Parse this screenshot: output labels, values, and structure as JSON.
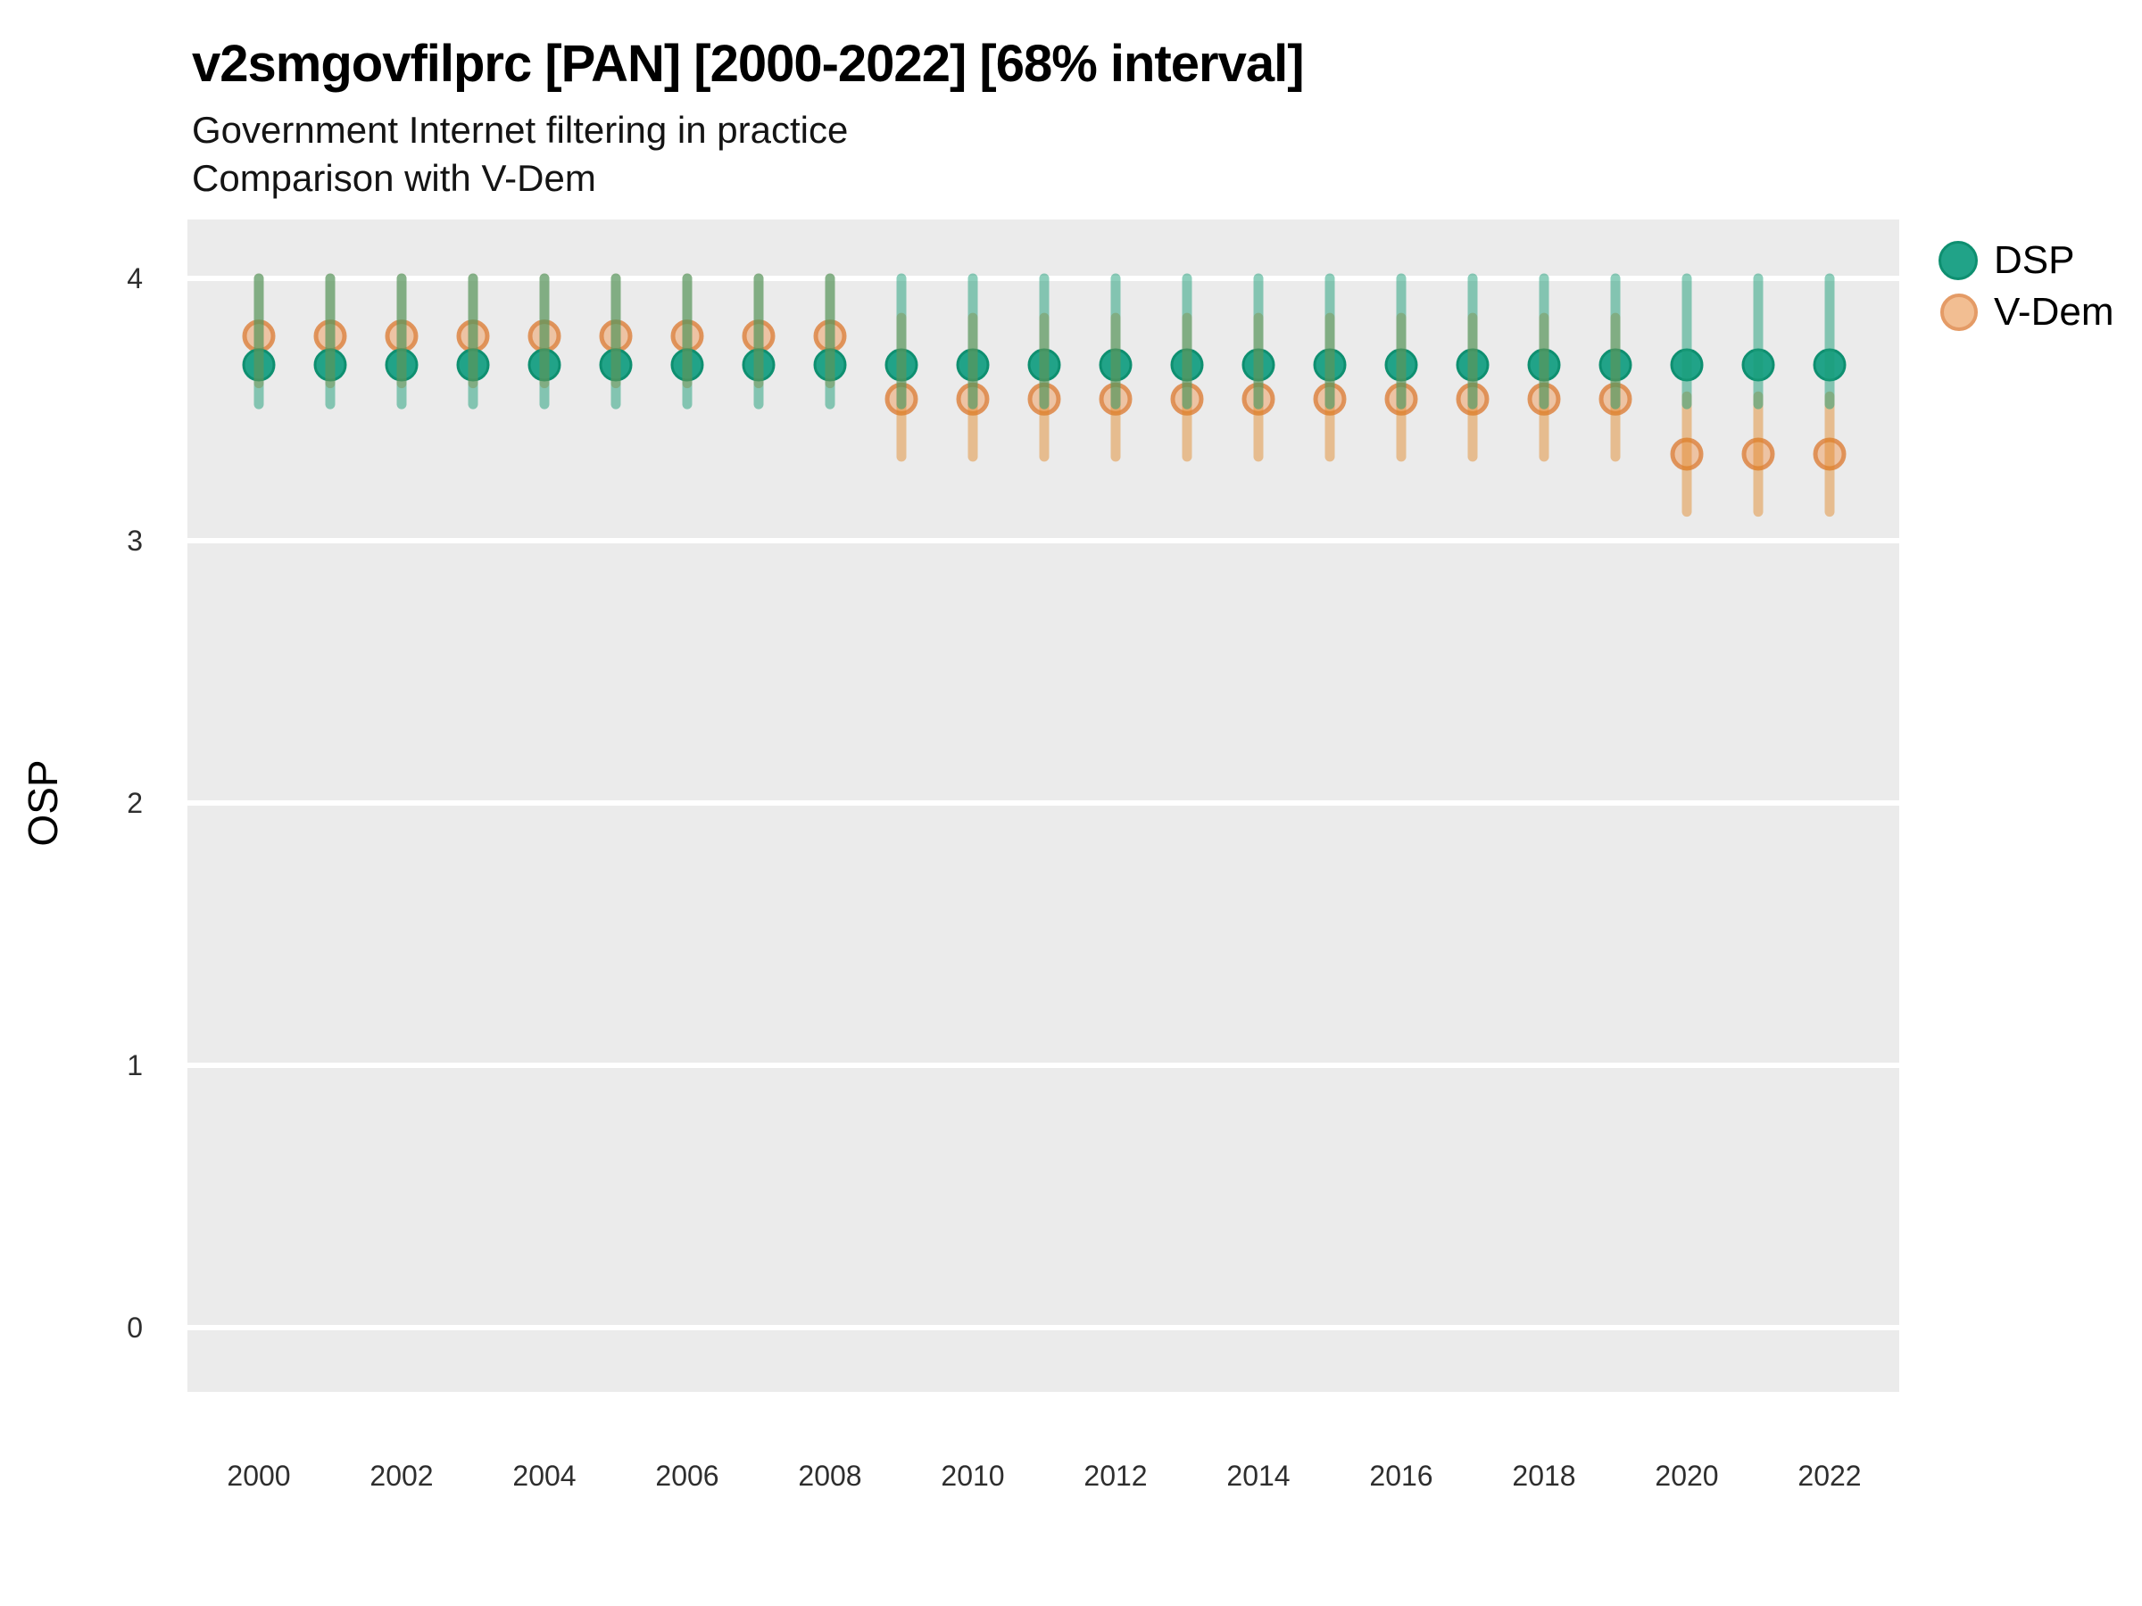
{
  "chart_data": {
    "type": "scatter",
    "title": "v2smgovfilprc [PAN] [2000-2022] [68% interval]",
    "subtitle1": "Government Internet filtering in practice",
    "subtitle2": "Comparison with V-Dem",
    "ylabel": "OSP",
    "xlabel": "",
    "x": [
      2000,
      2001,
      2002,
      2003,
      2004,
      2005,
      2006,
      2007,
      2008,
      2009,
      2010,
      2011,
      2012,
      2013,
      2014,
      2015,
      2016,
      2017,
      2018,
      2019,
      2020,
      2021,
      2022
    ],
    "xticks": [
      2000,
      2002,
      2004,
      2006,
      2008,
      2010,
      2012,
      2014,
      2016,
      2018,
      2020,
      2022
    ],
    "yticks": [
      4,
      3,
      2,
      1,
      0
    ],
    "ylim": [
      -0.22,
      4.22
    ],
    "interval_label": "68% interval",
    "legend_position": "right",
    "panel_bg": "#EBEBEB",
    "gridline_color": "#FFFFFF",
    "series": [
      {
        "name": "DSP",
        "point_fill": "#21A388",
        "point_stroke": "#0E8F70",
        "bar_color": "#1B9E77",
        "values": [
          3.67,
          3.67,
          3.67,
          3.67,
          3.67,
          3.67,
          3.67,
          3.67,
          3.67,
          3.67,
          3.67,
          3.67,
          3.67,
          3.67,
          3.67,
          3.67,
          3.67,
          3.67,
          3.67,
          3.67,
          3.67,
          3.67,
          3.67
        ],
        "lower": [
          3.52,
          3.52,
          3.52,
          3.52,
          3.52,
          3.52,
          3.52,
          3.52,
          3.52,
          3.52,
          3.52,
          3.52,
          3.52,
          3.52,
          3.52,
          3.52,
          3.52,
          3.52,
          3.52,
          3.52,
          3.52,
          3.52,
          3.52
        ],
        "upper": [
          4.0,
          4.0,
          4.0,
          4.0,
          4.0,
          4.0,
          4.0,
          4.0,
          4.0,
          4.0,
          4.0,
          4.0,
          4.0,
          4.0,
          4.0,
          4.0,
          4.0,
          4.0,
          4.0,
          4.0,
          4.0,
          4.0,
          4.0
        ]
      },
      {
        "name": "V-Dem",
        "point_fill": "#EFA268",
        "point_stroke": "#DE8B4C",
        "bar_color": "#E0821E",
        "values": [
          3.78,
          3.78,
          3.78,
          3.78,
          3.78,
          3.78,
          3.78,
          3.78,
          3.78,
          3.54,
          3.54,
          3.54,
          3.54,
          3.54,
          3.54,
          3.54,
          3.54,
          3.54,
          3.54,
          3.54,
          3.33,
          3.33,
          3.33
        ],
        "lower": [
          3.6,
          3.6,
          3.6,
          3.6,
          3.6,
          3.6,
          3.6,
          3.6,
          3.6,
          3.32,
          3.32,
          3.32,
          3.32,
          3.32,
          3.32,
          3.32,
          3.32,
          3.32,
          3.32,
          3.32,
          3.11,
          3.11,
          3.11
        ],
        "upper": [
          4.0,
          4.0,
          4.0,
          4.0,
          4.0,
          4.0,
          4.0,
          4.0,
          4.0,
          3.85,
          3.85,
          3.85,
          3.85,
          3.85,
          3.85,
          3.85,
          3.85,
          3.85,
          3.85,
          3.85,
          3.55,
          3.55,
          3.55
        ]
      }
    ]
  }
}
